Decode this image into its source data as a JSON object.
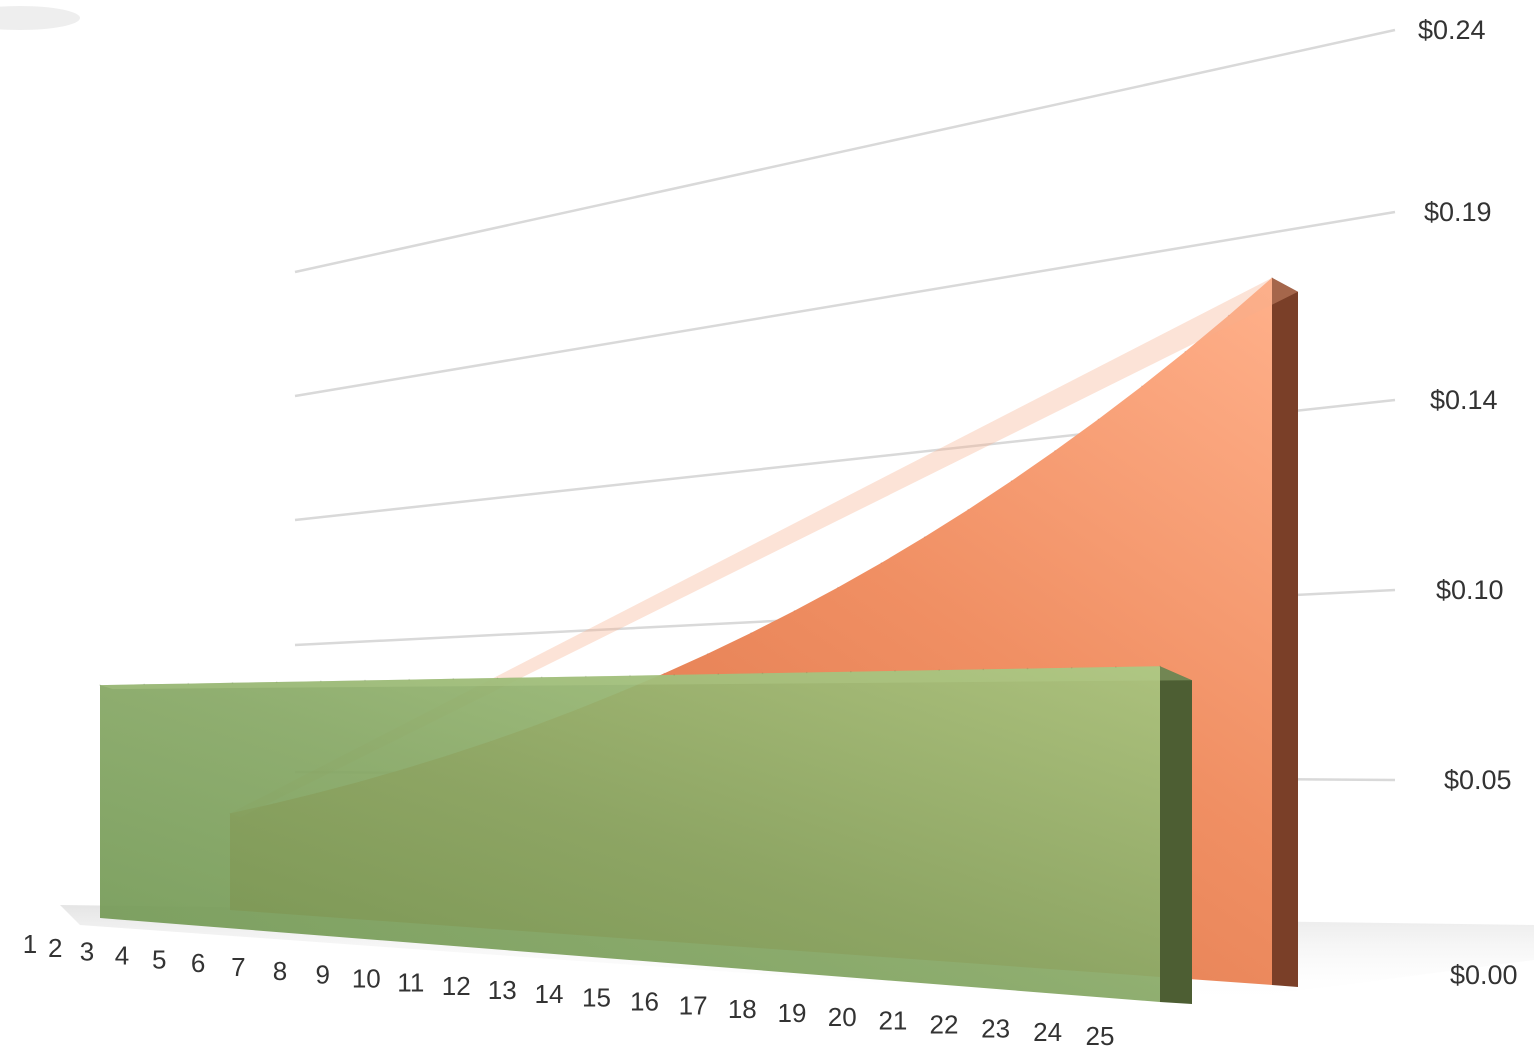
{
  "chart_data": {
    "type": "area",
    "title": "",
    "xlabel": "",
    "ylabel": "",
    "categories": [
      "1",
      "2",
      "3",
      "4",
      "5",
      "6",
      "7",
      "8",
      "9",
      "10",
      "11",
      "12",
      "13",
      "14",
      "15",
      "16",
      "17",
      "18",
      "19",
      "20",
      "21",
      "22",
      "23",
      "24",
      "25"
    ],
    "y_tick_labels": [
      "$0.00",
      "$0.05",
      "$0.10",
      "$0.14",
      "$0.19",
      "$0.24"
    ],
    "ylim": [
      0,
      0.24
    ],
    "grid": true,
    "legend": "none",
    "series": [
      {
        "color": "#e8825a",
        "values": [
          0.071,
          0.0745,
          0.078,
          0.0816,
          0.0853,
          0.089,
          0.0928,
          0.0967,
          0.1007,
          0.1048,
          0.1089,
          0.1131,
          0.1174,
          0.1218,
          0.1263,
          0.1309,
          0.1356,
          0.1404,
          0.1453,
          0.1503,
          0.1554,
          0.1606,
          0.1659,
          0.1713,
          0.1768
        ]
      },
      {
        "color": "#8cb06a",
        "values": [
          0.073,
          0.073,
          0.073,
          0.073,
          0.073,
          0.073,
          0.073,
          0.073,
          0.073,
          0.073,
          0.073,
          0.073,
          0.073,
          0.073,
          0.073,
          0.073,
          0.073,
          0.073,
          0.073,
          0.073,
          0.073,
          0.073,
          0.073,
          0.073,
          0.073
        ]
      }
    ]
  }
}
